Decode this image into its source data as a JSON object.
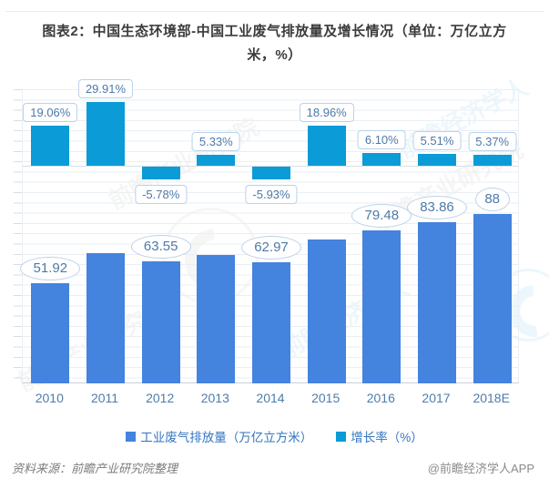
{
  "page": {
    "title": "图表2：中国生态环境部-中国工业废气排放量及增长情况（单位：万亿立方米，%）",
    "source_note": "资料来源：前瞻产业研究院整理",
    "credit": "@前瞻经济学人APP"
  },
  "watermarks": {
    "gray_text": "前瞻产业研究院",
    "cyan_text": "前瞻经济学人"
  },
  "chart_data": {
    "type": "bar",
    "title": "图表2：中国生态环境部-中国工业废气排放量及增长情况（单位：万亿立方米，%）",
    "categories": [
      "2010",
      "2011",
      "2012",
      "2013",
      "2014",
      "2015",
      "2016",
      "2017",
      "2018E"
    ],
    "series": [
      {
        "name": "工业废气排放量（万亿立方米）",
        "unit": "万亿立方米",
        "color": "#4483de",
        "values": [
          51.92,
          67.4,
          63.55,
          66.9,
          62.97,
          74.9,
          79.48,
          83.86,
          88
        ],
        "data_labels": [
          "51.92",
          null,
          "63.55",
          null,
          "62.97",
          null,
          "79.48",
          "83.86",
          "88"
        ]
      },
      {
        "name": "增长率（%）",
        "unit": "%",
        "color": "#0b9bd7",
        "values": [
          19.06,
          29.91,
          -5.78,
          5.33,
          -5.93,
          18.96,
          6.1,
          5.51,
          5.37
        ],
        "data_labels": [
          "19.06%",
          "29.91%",
          "-5.78%",
          "5.33%",
          "-5.93%",
          "18.96%",
          "6.10%",
          "5.51%",
          "5.37%"
        ]
      }
    ],
    "legend": [
      "工业废气排放量（万亿立方米）",
      "增长率（%）"
    ],
    "legend_position": "bottom",
    "grid": true,
    "xlabel": "",
    "ylabel": ""
  }
}
